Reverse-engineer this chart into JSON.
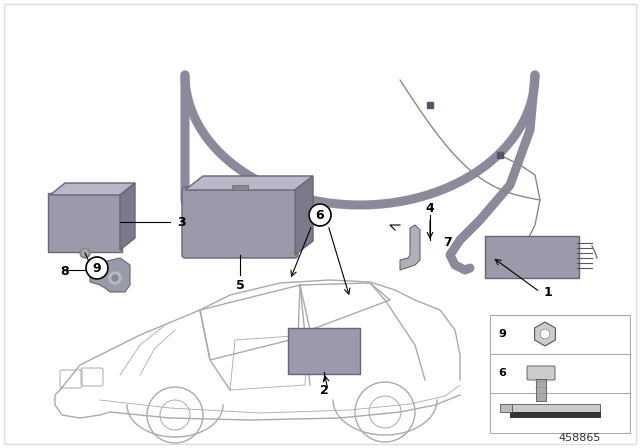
{
  "background_color": "#ffffff",
  "border_color": "#dddddd",
  "part_number": "458865",
  "cable_color": "#8a8a9a",
  "cable_color_dark": "#6a6a7a",
  "wire_color": "#aaaaaa",
  "comp_color": "#9a9aaa",
  "comp_color_light": "#b8b8c8",
  "comp_edge": "#666677",
  "car_line_color": "#aaaaaa",
  "label_font": 9,
  "car_scale": 1.0
}
